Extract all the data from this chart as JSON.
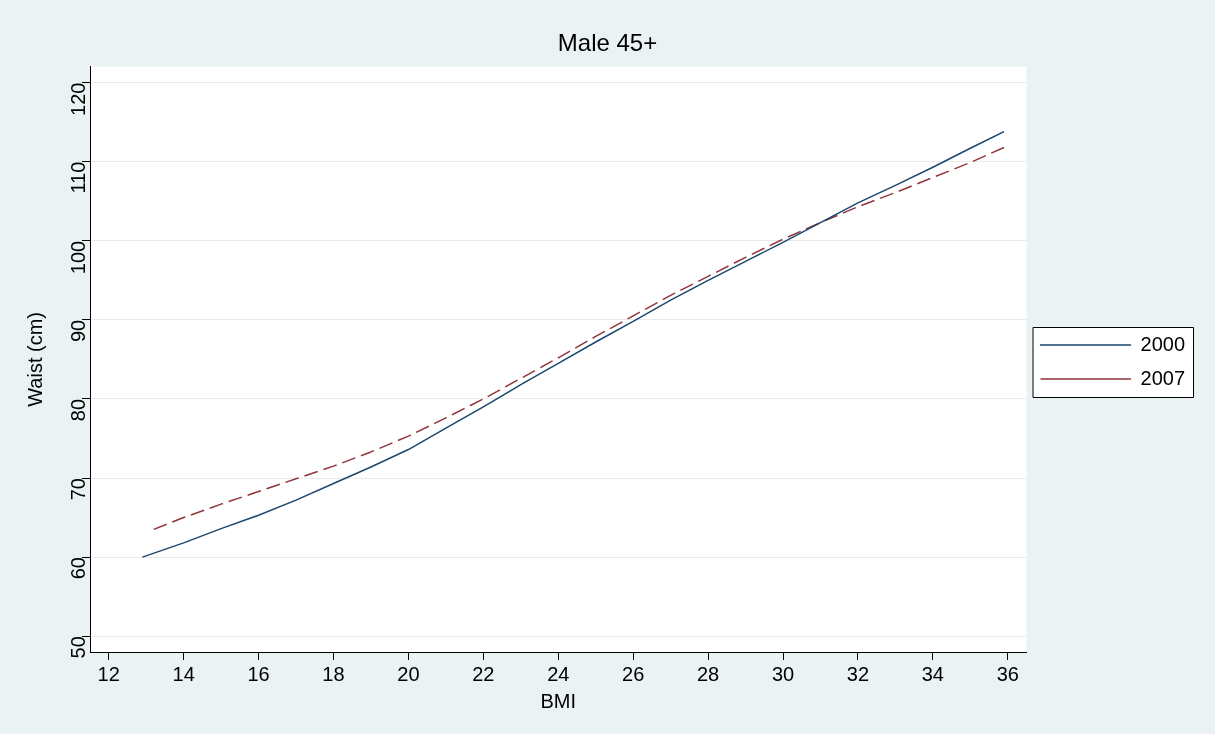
{
  "chart_data": {
    "type": "line",
    "title": "Male 45+",
    "xlabel": "BMI",
    "ylabel": "Waist (cm)",
    "xlim": [
      11.5,
      36.5
    ],
    "xticks": [
      12,
      14,
      16,
      18,
      20,
      22,
      24,
      26,
      28,
      30,
      32,
      34,
      36
    ],
    "ylim": [
      48,
      122
    ],
    "yticks": [
      50,
      60,
      70,
      80,
      90,
      100,
      110,
      120
    ],
    "grid": "y",
    "legend": "right",
    "marker": "none",
    "series": [
      {
        "name": "2000",
        "color": "#1a476f",
        "line_style": "solid",
        "x": [
          12.9,
          14,
          15,
          16,
          17,
          18,
          19,
          20,
          21,
          22,
          23,
          24,
          25,
          26,
          27,
          28,
          29,
          30,
          31,
          32,
          33,
          34,
          35,
          35.9
        ],
        "values": [
          60,
          61.8,
          63.6,
          65.3,
          67.2,
          69.3,
          71.4,
          73.6,
          76.3,
          79,
          81.8,
          84.5,
          87.2,
          89.8,
          92.5,
          95,
          97.4,
          99.8,
          102.3,
          104.8,
          107,
          109.3,
          111.7,
          113.8
        ]
      },
      {
        "name": "2007",
        "color": "#90353b",
        "line_style": "dashed",
        "x": [
          13.2,
          14,
          15,
          16,
          17,
          18,
          19,
          20,
          21,
          22,
          23,
          24,
          25,
          26,
          27,
          28,
          29,
          30,
          31,
          32,
          33,
          34,
          35,
          35.9
        ],
        "values": [
          63.5,
          65,
          66.7,
          68.3,
          69.9,
          71.5,
          73.3,
          75.3,
          77.6,
          80,
          82.6,
          85.2,
          87.9,
          90.5,
          93.1,
          95.5,
          97.9,
          100.2,
          102.3,
          104.3,
          106.1,
          108,
          109.9,
          111.8
        ]
      }
    ]
  }
}
